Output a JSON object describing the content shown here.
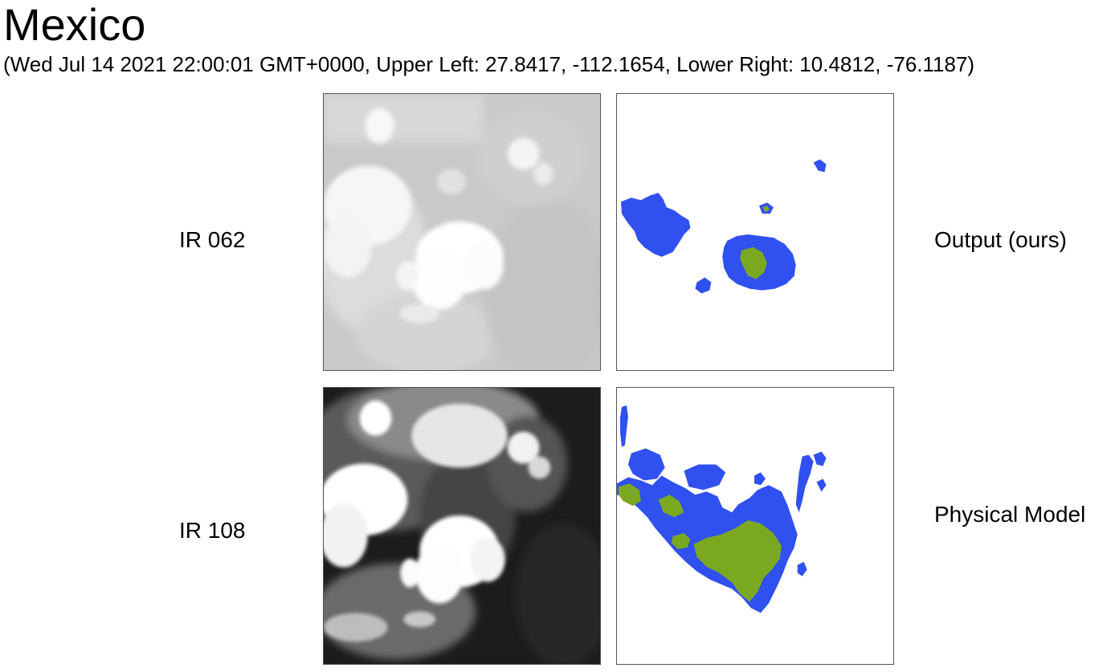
{
  "header": {
    "title": "Mexico",
    "subtitle": "(Wed Jul 14 2021 22:00:01 GMT+0000, Upper Left: 27.8417, -112.1654, Lower Right: 10.4812, -76.1187)"
  },
  "rows": [
    {
      "label": "IR 062"
    },
    {
      "label": "IR 108"
    }
  ],
  "column_labels": {
    "output": "Output (ours)",
    "physical": "Physical Model"
  },
  "colors": {
    "mask_blue": "#3050f0",
    "mask_green": "#7aa821",
    "background": "#ffffff",
    "ir062_base": "#c8c8c8",
    "ir108_base": "#222222"
  }
}
